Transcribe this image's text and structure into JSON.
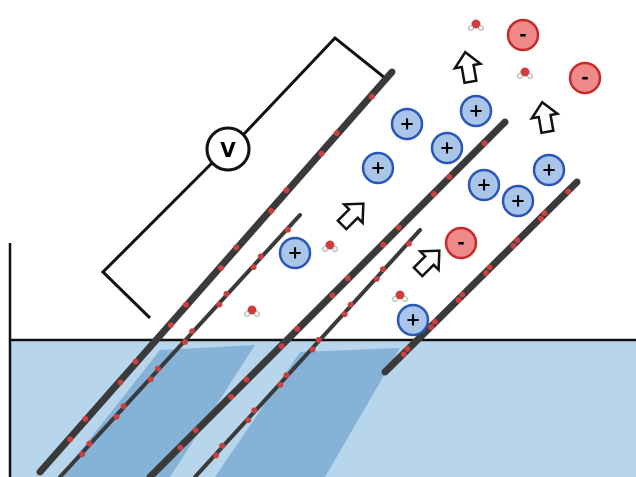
{
  "voltmeter_label": "V",
  "cation_sign": "+",
  "anion_sign": "-"
}
